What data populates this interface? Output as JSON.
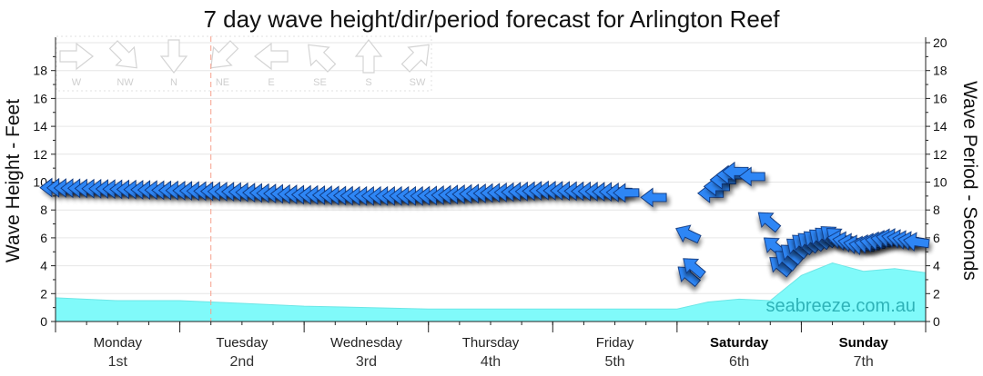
{
  "chart_data": {
    "type": "area",
    "title": "7 day wave height/dir/period forecast for Arlington Reef",
    "ylabel_left": "Wave Height - Feet",
    "ylabel_right": "Wave Period - Seconds",
    "ylim_left": [
      0,
      20
    ],
    "ylim_right": [
      0,
      20
    ],
    "yticks_left": [
      "0",
      "2",
      "4",
      "6",
      "8",
      "10",
      "12",
      "14",
      "16",
      "18"
    ],
    "yticks_right": [
      "0",
      "2",
      "4",
      "6",
      "8",
      "10",
      "12",
      "14",
      "16",
      "18",
      "20"
    ],
    "xlim_hours": [
      0,
      168
    ],
    "days": [
      {
        "name": "Monday",
        "date": "1st",
        "bold": false
      },
      {
        "name": "Tuesday",
        "date": "2nd",
        "bold": false
      },
      {
        "name": "Wednesday",
        "date": "3rd",
        "bold": false
      },
      {
        "name": "Thursday",
        "date": "4th",
        "bold": false
      },
      {
        "name": "Friday",
        "date": "5th",
        "bold": false
      },
      {
        "name": "Saturday",
        "date": "6th",
        "bold": true
      },
      {
        "name": "Sunday",
        "date": "7th",
        "bold": true
      }
    ],
    "now_marker_hour": 30,
    "series": [
      {
        "name": "Wave Height",
        "hours": [
          0,
          12,
          24,
          36,
          48,
          60,
          72,
          84,
          96,
          108,
          120,
          126,
          132,
          138,
          144,
          150,
          156,
          162,
          168
        ],
        "values": [
          1.7,
          1.5,
          1.5,
          1.3,
          1.1,
          1.0,
          0.9,
          0.9,
          0.9,
          0.9,
          0.9,
          1.4,
          1.6,
          1.5,
          3.3,
          4.2,
          3.6,
          3.8,
          3.5
        ]
      }
    ],
    "wave_period": {
      "hours": [
        0,
        12,
        24,
        36,
        48,
        60,
        72,
        84,
        96,
        108,
        120,
        126,
        130,
        132,
        134,
        136,
        140,
        144,
        150,
        156,
        162,
        168
      ],
      "values": [
        9.6,
        9.5,
        9.4,
        9.3,
        9.1,
        9.0,
        9.0,
        9.2,
        9.4,
        9.3,
        9.0,
        8.8,
        10.4,
        10.8,
        10.7,
        10.4,
        3.8,
        5.4,
        6.1,
        5.4,
        6.0,
        5.6
      ]
    },
    "compass_legend": [
      "W",
      "NW",
      "N",
      "NE",
      "E",
      "SE",
      "S",
      "SW"
    ],
    "watermark": "seabreeze.com.au",
    "colors": {
      "wave_fill": "#80fafa",
      "arrow_fill": "#2e86f5",
      "arrow_stroke": "#10357a",
      "grid": "#e6e6e6",
      "now_line": "#f6a08c"
    }
  }
}
